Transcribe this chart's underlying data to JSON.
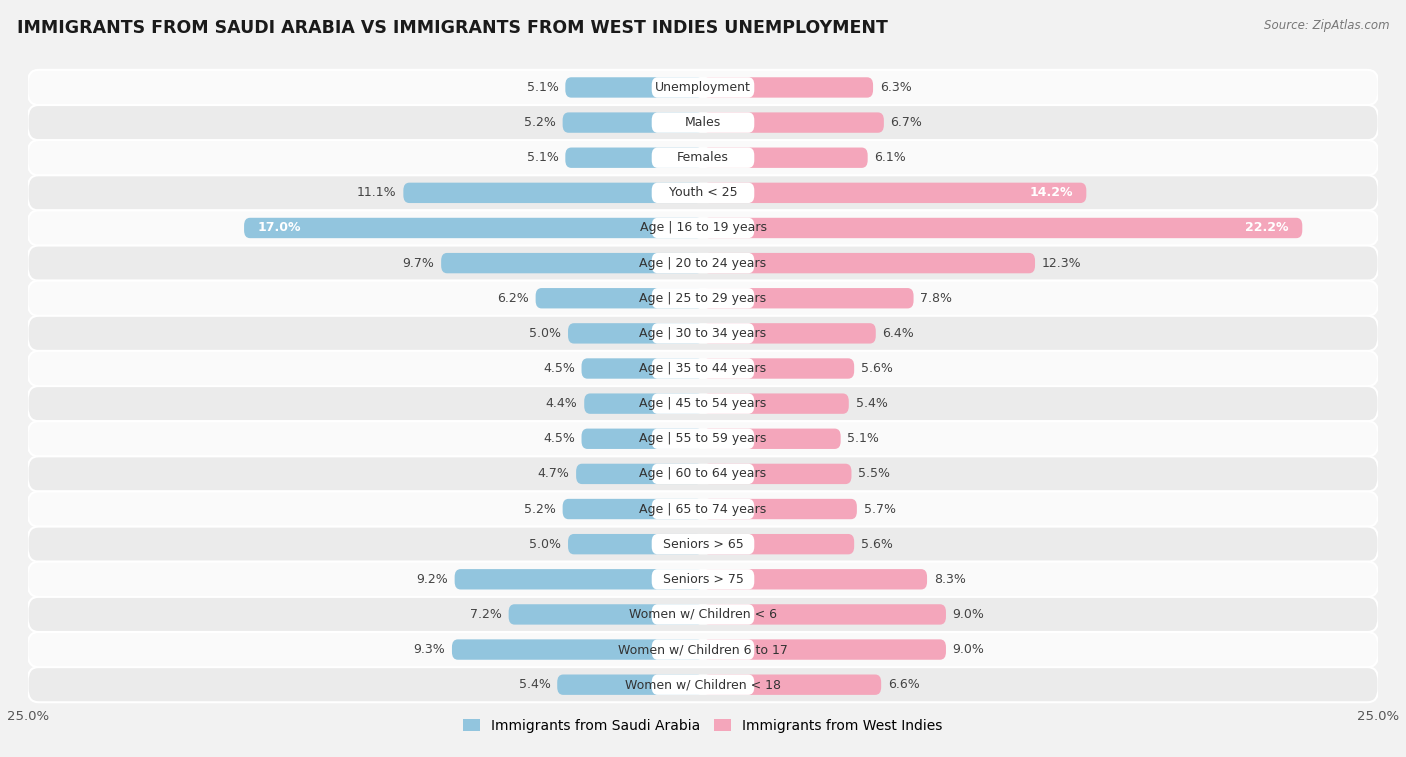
{
  "title": "IMMIGRANTS FROM SAUDI ARABIA VS IMMIGRANTS FROM WEST INDIES UNEMPLOYMENT",
  "source": "Source: ZipAtlas.com",
  "categories": [
    "Unemployment",
    "Males",
    "Females",
    "Youth < 25",
    "Age | 16 to 19 years",
    "Age | 20 to 24 years",
    "Age | 25 to 29 years",
    "Age | 30 to 34 years",
    "Age | 35 to 44 years",
    "Age | 45 to 54 years",
    "Age | 55 to 59 years",
    "Age | 60 to 64 years",
    "Age | 65 to 74 years",
    "Seniors > 65",
    "Seniors > 75",
    "Women w/ Children < 6",
    "Women w/ Children 6 to 17",
    "Women w/ Children < 18"
  ],
  "saudi_arabia": [
    5.1,
    5.2,
    5.1,
    11.1,
    17.0,
    9.7,
    6.2,
    5.0,
    4.5,
    4.4,
    4.5,
    4.7,
    5.2,
    5.0,
    9.2,
    7.2,
    9.3,
    5.4
  ],
  "west_indies": [
    6.3,
    6.7,
    6.1,
    14.2,
    22.2,
    12.3,
    7.8,
    6.4,
    5.6,
    5.4,
    5.1,
    5.5,
    5.7,
    5.6,
    8.3,
    9.0,
    9.0,
    6.6
  ],
  "saudi_color": "#92c5de",
  "west_color": "#f4a6bb",
  "saudi_color_bright": "#4393c3",
  "west_color_bright": "#e8547a",
  "bg_color": "#f2f2f2",
  "row_color_light": "#fafafa",
  "row_color_dark": "#ebebeb",
  "xlim": 25.0,
  "bar_height": 0.58,
  "label_fontsize": 9.0,
  "title_fontsize": 12.5,
  "tick_fontsize": 9.5,
  "legend_fontsize": 10,
  "inside_label_threshold": 13.0
}
